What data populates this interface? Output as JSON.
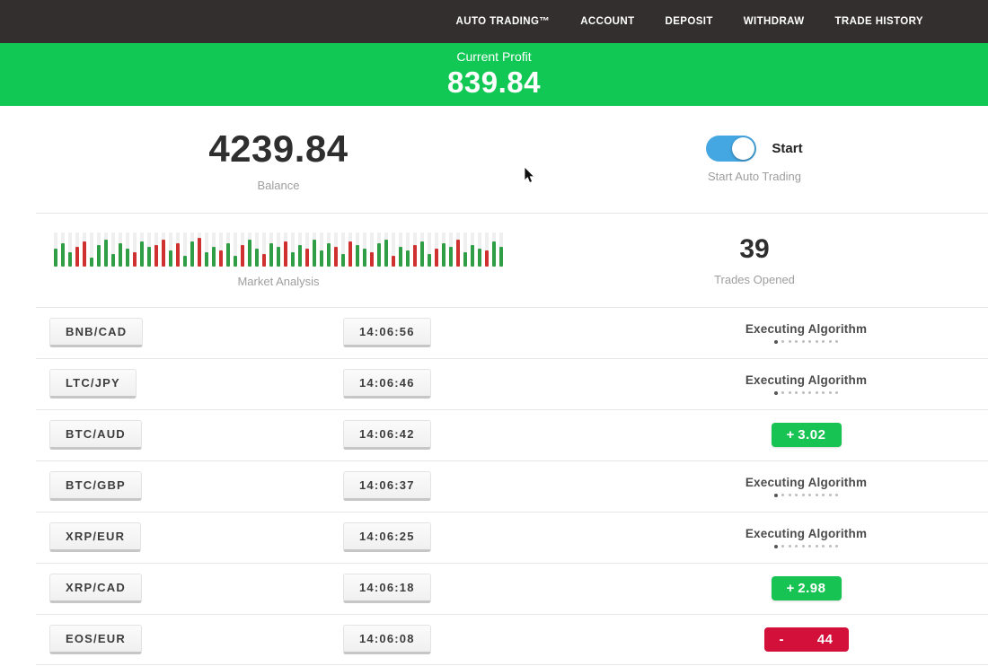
{
  "nav": {
    "items": [
      {
        "label": "AUTO TRADING™"
      },
      {
        "label": "ACCOUNT"
      },
      {
        "label": "DEPOSIT"
      },
      {
        "label": "WITHDRAW"
      },
      {
        "label": "TRADE HISTORY"
      }
    ]
  },
  "banner": {
    "label": "Current Profit",
    "value": "839.84"
  },
  "stats": {
    "balance": {
      "value": "4239.84",
      "label": "Balance"
    },
    "auto_trading": {
      "toggle_state": "on",
      "toggle_label": "Start",
      "caption": "Start Auto Trading"
    },
    "market_analysis": {
      "label": "Market Analysis"
    },
    "trades_opened": {
      "value": "39",
      "label": "Trades Opened"
    }
  },
  "chart_data": {
    "type": "bar",
    "title": "Market Analysis",
    "note": "decorative candlestick-style activity bars; g=green up, r=red down, number=relative height px of 38px max",
    "bars": [
      "g20",
      "g26",
      "g16",
      "r22",
      "r28",
      "g10",
      "g24",
      "g30",
      "g14",
      "g26",
      "g20",
      "r16",
      "g28",
      "g22",
      "r24",
      "r30",
      "g18",
      "r26",
      "g12",
      "g28",
      "r32",
      "g16",
      "g22",
      "r18",
      "g26",
      "g12",
      "r24",
      "g30",
      "g20",
      "r14",
      "g26",
      "g22",
      "r28",
      "g16",
      "g24",
      "r20",
      "g30",
      "g18",
      "g26",
      "r22",
      "g14",
      "r28",
      "g24",
      "g20",
      "r16",
      "g26",
      "g30",
      "r12",
      "g22",
      "g18",
      "r24",
      "g28",
      "g14",
      "r20",
      "g26",
      "g22",
      "r30",
      "g16",
      "g24",
      "g20",
      "r18",
      "g28",
      "g22"
    ]
  },
  "table": {
    "executing_dots": {
      "count": 10,
      "active_index": 0
    },
    "rows": [
      {
        "pair": "BNB/CAD",
        "time": "14:06:56",
        "status": {
          "type": "executing",
          "label": "Executing Algorithm"
        }
      },
      {
        "pair": "LTC/JPY",
        "time": "14:06:46",
        "status": {
          "type": "executing",
          "label": "Executing Algorithm"
        }
      },
      {
        "pair": "BTC/AUD",
        "time": "14:06:42",
        "status": {
          "type": "profit",
          "sign": "+",
          "value": "3.02"
        }
      },
      {
        "pair": "BTC/GBP",
        "time": "14:06:37",
        "status": {
          "type": "executing",
          "label": "Executing Algorithm"
        }
      },
      {
        "pair": "XRP/EUR",
        "time": "14:06:25",
        "status": {
          "type": "executing",
          "label": "Executing Algorithm"
        }
      },
      {
        "pair": "XRP/CAD",
        "time": "14:06:18",
        "status": {
          "type": "profit",
          "sign": "+",
          "value": "2.98"
        }
      },
      {
        "pair": "EOS/EUR",
        "time": "14:06:08",
        "status": {
          "type": "loss",
          "sign": "-",
          "value": "44"
        }
      }
    ]
  },
  "colors": {
    "nav_bg": "#332f2f",
    "banner_green": "#12c855",
    "profit_badge_green": "#16c353",
    "loss_badge_red": "#d21039",
    "toggle_blue": "#45a7e2",
    "chart_green": "#2f9e46",
    "chart_red": "#cf3131"
  }
}
